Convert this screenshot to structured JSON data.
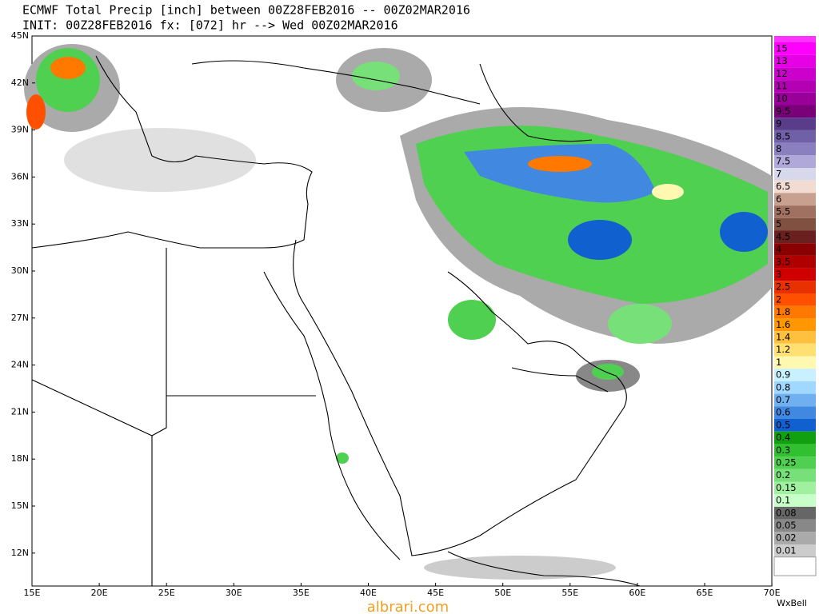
{
  "header": {
    "line1": "ECMWF Total Precip [inch] between 00Z28FEB2016 -- 00Z02MAR2016",
    "line2": "INIT: 00Z28FEB2016 fx: [072] hr --> Wed 00Z02MAR2016"
  },
  "map": {
    "lat_labels": [
      "45N",
      "42N",
      "39N",
      "36N",
      "33N",
      "30N",
      "27N",
      "24N",
      "21N",
      "18N",
      "15N",
      "12N"
    ],
    "lon_labels": [
      "15E",
      "20E",
      "25E",
      "30E",
      "35E",
      "40E",
      "45E",
      "50E",
      "55E",
      "60E",
      "65E",
      "70E"
    ]
  },
  "colorbar": {
    "items": [
      {
        "label": "15",
        "color": "#ff00ff"
      },
      {
        "label": "13",
        "color": "#e600e6"
      },
      {
        "label": "12",
        "color": "#cc00cc"
      },
      {
        "label": "11",
        "color": "#b300b3"
      },
      {
        "label": "10",
        "color": "#990099"
      },
      {
        "label": "9.5",
        "color": "#7a007a"
      },
      {
        "label": "9",
        "color": "#5a3d8a"
      },
      {
        "label": "8.5",
        "color": "#7060a8"
      },
      {
        "label": "8",
        "color": "#8a80c0"
      },
      {
        "label": "7.5",
        "color": "#b0a8d8"
      },
      {
        "label": "7",
        "color": "#d8d8ec"
      },
      {
        "label": "6.5",
        "color": "#f2dcd2"
      },
      {
        "label": "6",
        "color": "#c8a090"
      },
      {
        "label": "5.5",
        "color": "#a07060"
      },
      {
        "label": "5",
        "color": "#805040"
      },
      {
        "label": "4.5",
        "color": "#6b2020"
      },
      {
        "label": "4",
        "color": "#8b0000"
      },
      {
        "label": "3.5",
        "color": "#b00000"
      },
      {
        "label": "3",
        "color": "#d00000"
      },
      {
        "label": "2.5",
        "color": "#e83000"
      },
      {
        "label": "2",
        "color": "#ff5000"
      },
      {
        "label": "1.8",
        "color": "#ff7800"
      },
      {
        "label": "1.6",
        "color": "#ff9800"
      },
      {
        "label": "1.4",
        "color": "#ffc040"
      },
      {
        "label": "1.2",
        "color": "#ffe070"
      },
      {
        "label": "1",
        "color": "#fff8b0"
      },
      {
        "label": "0.9",
        "color": "#c8f0ff"
      },
      {
        "label": "0.8",
        "color": "#a0d8ff"
      },
      {
        "label": "0.7",
        "color": "#70b0f0"
      },
      {
        "label": "0.6",
        "color": "#4088e0"
      },
      {
        "label": "0.5",
        "color": "#1060d0"
      },
      {
        "label": "0.4",
        "color": "#10a010"
      },
      {
        "label": "0.3",
        "color": "#30c030"
      },
      {
        "label": "0.25",
        "color": "#50d050"
      },
      {
        "label": "0.2",
        "color": "#78e078"
      },
      {
        "label": "0.15",
        "color": "#a0f0a0"
      },
      {
        "label": "0.1",
        "color": "#c8ffc8"
      },
      {
        "label": "0.08",
        "color": "#666666"
      },
      {
        "label": "0.05",
        "color": "#888888"
      },
      {
        "label": "0.02",
        "color": "#aaaaaa"
      },
      {
        "label": "0.01",
        "color": "#cccccc"
      }
    ]
  },
  "footer": {
    "brand": "WxBell",
    "watermark": "albrari.com"
  }
}
